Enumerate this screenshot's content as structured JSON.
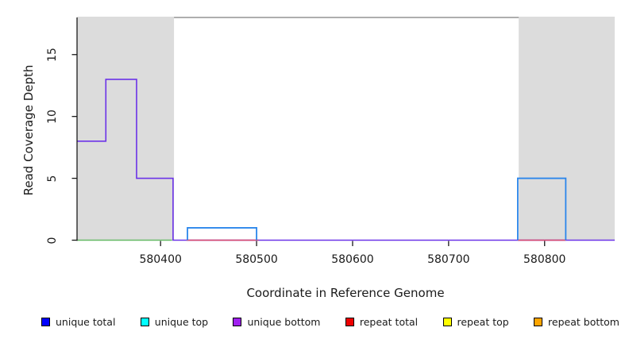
{
  "chart_data": {
    "type": "line",
    "subtype": "step-coverage-plot",
    "title": "",
    "xlabel": "Coordinate in Reference Genome",
    "ylabel": "Read Coverage Depth",
    "xlim": [
      580313,
      580873
    ],
    "ylim": [
      0,
      18
    ],
    "x_ticks": [
      "580400",
      "580500",
      "580600",
      "580700",
      "580800"
    ],
    "x_tick_values": [
      580400,
      580500,
      580600,
      580700,
      580800
    ],
    "y_ticks": [
      "0",
      "5",
      "10",
      "15"
    ],
    "y_tick_values": [
      0,
      5,
      10,
      15
    ],
    "grid": false,
    "background_color": "#ffffff",
    "shaded_region_color": "#dcdcdc",
    "shaded_regions": [
      {
        "name": "left-masked-region",
        "from": 580313,
        "to": 580414
      },
      {
        "name": "right-masked-region",
        "from": 580773,
        "to": 580873
      }
    ],
    "series": [
      {
        "name": "overlap-baseline",
        "color": "#66B966",
        "style": "flat",
        "z": 1,
        "steps": [
          {
            "from": 580313,
            "to": 580412,
            "value": 0
          }
        ]
      },
      {
        "name": "unique-bottom-coverage",
        "color": "#6B33E8",
        "style": "step",
        "z": 2,
        "steps": [
          {
            "from": 580313,
            "to": 580343,
            "value": 8
          },
          {
            "from": 580343,
            "to": 580375,
            "value": 13
          },
          {
            "from": 580375,
            "to": 580413,
            "value": 5
          },
          {
            "from": 580413,
            "to": 580873,
            "value": 0
          }
        ]
      },
      {
        "name": "repeat-total-coverage",
        "color": "#D9486B",
        "style": "flat",
        "z": 3,
        "steps": [
          {
            "from": 580427,
            "to": 580502,
            "value": 0
          },
          {
            "from": 580772,
            "to": 580822,
            "value": 0
          }
        ]
      },
      {
        "name": "unique-top-coverage",
        "color": "#2B86EB",
        "style": "box",
        "z": 4,
        "steps": [
          {
            "from": 580428,
            "to": 580500,
            "value": 1
          },
          {
            "from": 580772,
            "to": 580822,
            "value": 5
          }
        ]
      }
    ],
    "legend": {
      "position": "bottom",
      "items": [
        {
          "label": "unique total",
          "color": "#0000FF"
        },
        {
          "label": "unique top",
          "color": "#00FFFF"
        },
        {
          "label": "unique bottom",
          "color": "#A020F0"
        },
        {
          "label": "repeat total",
          "color": "#EE0000"
        },
        {
          "label": "repeat top",
          "color": "#FFFF00"
        },
        {
          "label": "repeat bottom",
          "color": "#FFA500"
        }
      ]
    },
    "axis_color": "#1a1a1a",
    "box_top_border_color": "#7d7d7d"
  }
}
